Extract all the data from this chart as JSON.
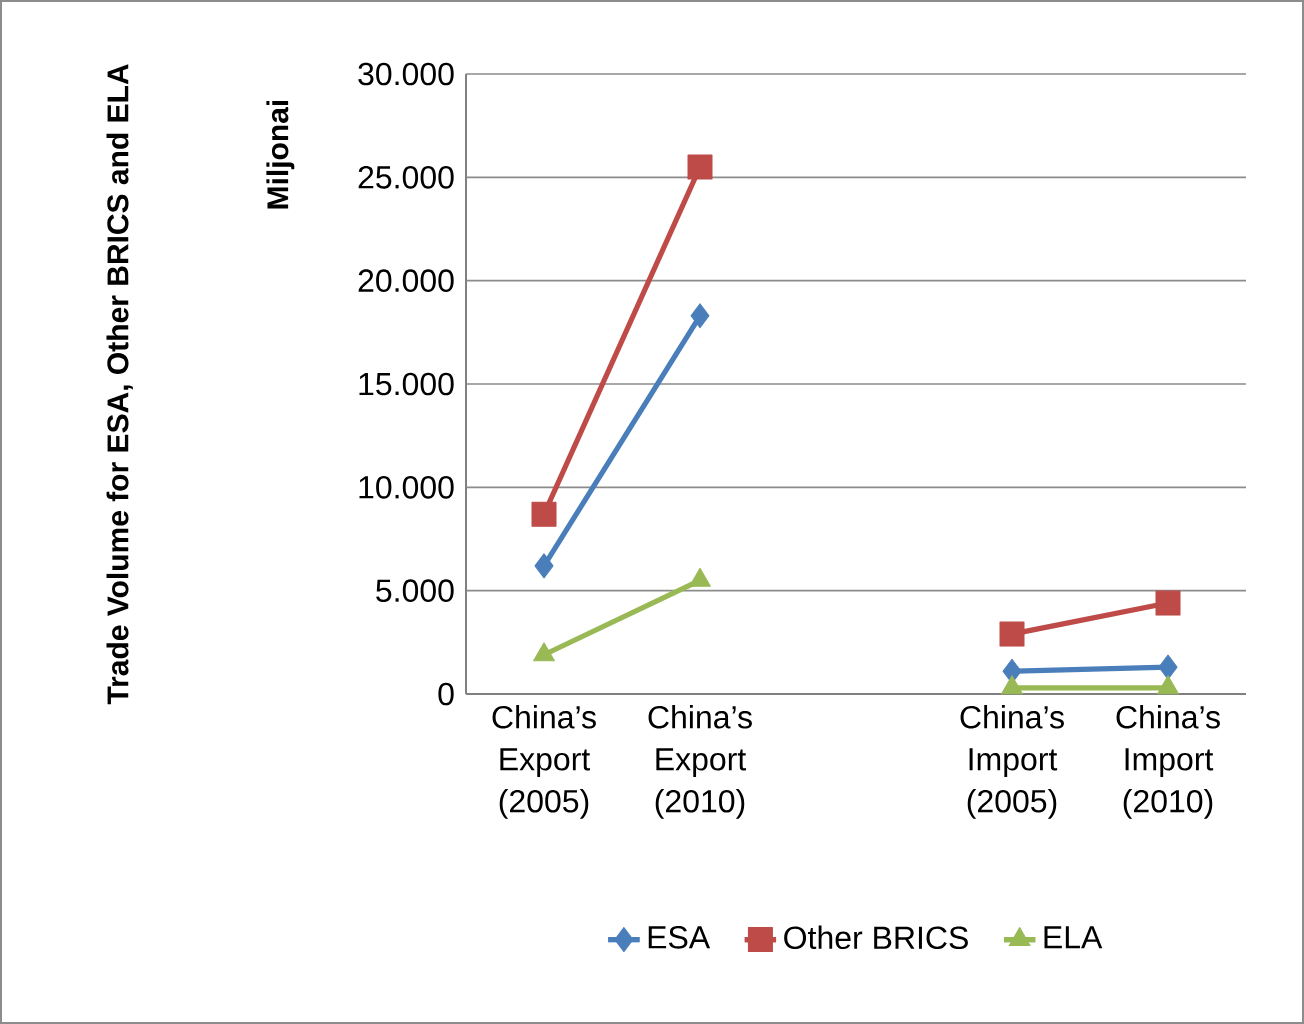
{
  "chart_data": {
    "type": "line",
    "ylabel": "Miljonai",
    "annotations": [
      "Trade Volume for ESA, Other BRICS and ELA"
    ],
    "categories": [
      "China’s Export (2005)",
      "China’s Export (2010)",
      null,
      "China’s Import (2005)",
      "China’s Import (2010)"
    ],
    "series": [
      {
        "name": "ESA",
        "color": "#4a7ebb",
        "marker": "diamond",
        "values": [
          6200,
          18300,
          null,
          1100,
          1300
        ]
      },
      {
        "name": "Other BRICS",
        "color": "#be4b48",
        "marker": "square",
        "values": [
          8700,
          25500,
          null,
          2900,
          4400
        ]
      },
      {
        "name": "ELA",
        "color": "#98b954",
        "marker": "triangle",
        "values": [
          1900,
          5500,
          null,
          300,
          300
        ]
      }
    ],
    "ylim": [
      0,
      30000
    ],
    "yticks": [
      0,
      {
        "value": 5000,
        "label": "5.000"
      },
      {
        "value": 10000,
        "label": "10.000"
      },
      {
        "value": 15000,
        "label": "15.000"
      },
      {
        "value": 20000,
        "label": "20.000"
      },
      {
        "value": 25000,
        "label": "25.000"
      },
      {
        "value": 30000,
        "label": "30.000"
      }
    ],
    "grid": "y",
    "legend": "bottom"
  }
}
